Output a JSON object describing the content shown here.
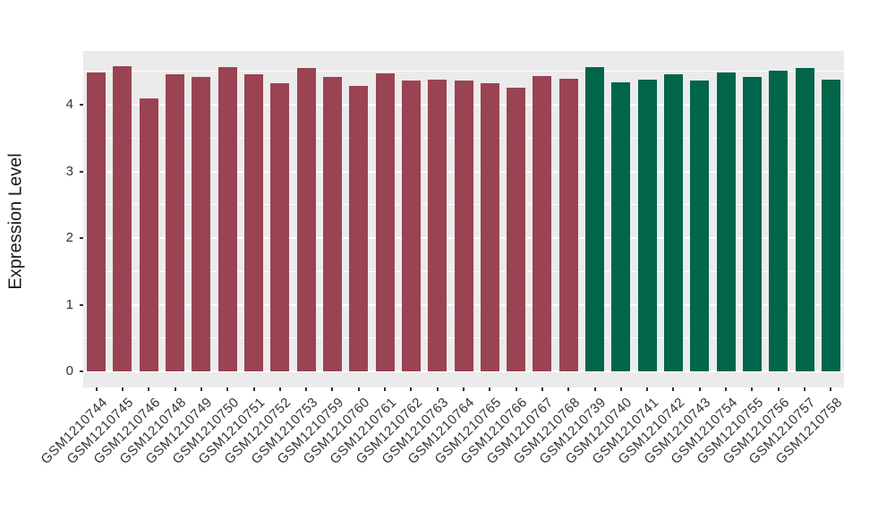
{
  "figure": {
    "background": "#FFFFFF",
    "panel_background": "#EBEBEB",
    "gridline_color": "#FFFFFF",
    "axis_text_color": "#333333",
    "axis_title_color": "#1A1A1A"
  },
  "chart_data": {
    "type": "bar",
    "title": "",
    "xlabel": "",
    "ylabel": "Expression Level",
    "ylim": [
      -0.24,
      4.81
    ],
    "yticks": [
      0,
      1,
      2,
      3,
      4
    ],
    "minor_gridlines": [
      0.5,
      1.5,
      2.5,
      3.5,
      4.5
    ],
    "grid": "white major and minor gridlines on gray panel",
    "legend_position": "none",
    "categories": [
      "GSM1210744",
      "GSM1210745",
      "GSM1210746",
      "GSM1210748",
      "GSM1210749",
      "GSM1210750",
      "GSM1210751",
      "GSM1210752",
      "GSM1210753",
      "GSM1210759",
      "GSM1210760",
      "GSM1210761",
      "GSM1210762",
      "GSM1210763",
      "GSM1210764",
      "GSM1210765",
      "GSM1210766",
      "GSM1210767",
      "GSM1210768",
      "GSM1210739",
      "GSM1210740",
      "GSM1210741",
      "GSM1210742",
      "GSM1210743",
      "GSM1210754",
      "GSM1210755",
      "GSM1210756",
      "GSM1210757",
      "GSM1210758"
    ],
    "values": [
      4.48,
      4.58,
      4.1,
      4.46,
      4.41,
      4.57,
      4.45,
      4.32,
      4.55,
      4.41,
      4.28,
      4.47,
      4.36,
      4.38,
      4.36,
      4.32,
      4.26,
      4.43,
      4.39,
      4.56,
      4.34,
      4.38,
      4.46,
      4.36,
      4.48,
      4.41,
      4.51,
      4.55,
      4.38
    ],
    "bar_groups": [
      0,
      0,
      0,
      0,
      0,
      0,
      0,
      0,
      0,
      0,
      0,
      0,
      0,
      0,
      0,
      0,
      0,
      0,
      0,
      1,
      1,
      1,
      1,
      1,
      1,
      1,
      1,
      1,
      1
    ],
    "group_colors": [
      "#9A4353",
      "#006549"
    ]
  }
}
